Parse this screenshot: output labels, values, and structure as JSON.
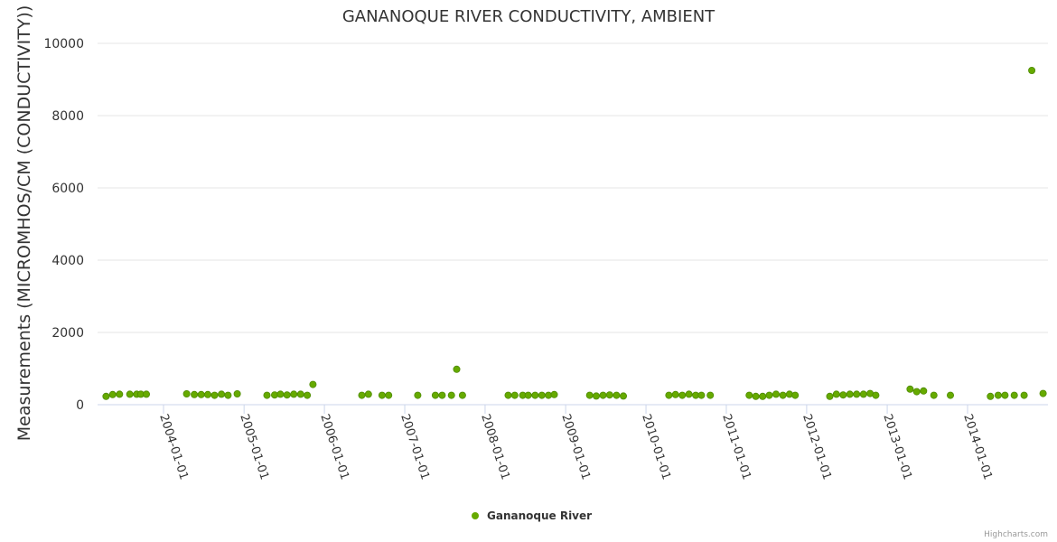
{
  "chart_data": {
    "type": "scatter",
    "title": "GANANOQUE RIVER CONDUCTIVITY, AMBIENT",
    "ylabel": "Measurements (MICROMHOS/CM (CONDUCTIVITY))",
    "xlabel": "",
    "ylim": [
      0,
      10000
    ],
    "y_ticks": [
      "0",
      "2000",
      "4000",
      "6000",
      "8000",
      "10000"
    ],
    "x_ticks": [
      "2004-01-01",
      "2005-01-01",
      "2006-01-01",
      "2007-01-01",
      "2008-01-01",
      "2009-01-01",
      "2010-01-01",
      "2011-01-01",
      "2012-01-01",
      "2013-01-01",
      "2014-01-01"
    ],
    "grid": true,
    "legend": "bottom-center",
    "series": [
      {
        "name": "Gananoque River",
        "color": "#66aa00",
        "points": [
          [
            "2003-04-15",
            230
          ],
          [
            "2003-05-15",
            280
          ],
          [
            "2003-06-15",
            290
          ],
          [
            "2003-08-01",
            290
          ],
          [
            "2003-09-01",
            290
          ],
          [
            "2003-09-20",
            290
          ],
          [
            "2003-10-15",
            290
          ],
          [
            "2004-04-15",
            300
          ],
          [
            "2004-05-20",
            280
          ],
          [
            "2004-06-20",
            280
          ],
          [
            "2004-07-20",
            280
          ],
          [
            "2004-08-20",
            260
          ],
          [
            "2004-09-20",
            290
          ],
          [
            "2004-10-20",
            260
          ],
          [
            "2004-12-01",
            300
          ],
          [
            "2005-04-15",
            260
          ],
          [
            "2005-05-20",
            270
          ],
          [
            "2005-06-15",
            290
          ],
          [
            "2005-07-15",
            270
          ],
          [
            "2005-08-15",
            290
          ],
          [
            "2005-09-15",
            290
          ],
          [
            "2005-10-15",
            260
          ],
          [
            "2005-11-10",
            560
          ],
          [
            "2006-06-20",
            260
          ],
          [
            "2006-07-20",
            290
          ],
          [
            "2006-09-20",
            260
          ],
          [
            "2006-10-20",
            260
          ],
          [
            "2007-03-01",
            260
          ],
          [
            "2007-05-20",
            260
          ],
          [
            "2007-06-20",
            260
          ],
          [
            "2007-08-01",
            260
          ],
          [
            "2007-08-25",
            980
          ],
          [
            "2007-09-20",
            260
          ],
          [
            "2008-04-15",
            260
          ],
          [
            "2008-05-15",
            260
          ],
          [
            "2008-06-20",
            260
          ],
          [
            "2008-07-15",
            260
          ],
          [
            "2008-08-15",
            260
          ],
          [
            "2008-09-15",
            260
          ],
          [
            "2008-10-15",
            260
          ],
          [
            "2008-11-10",
            280
          ],
          [
            "2009-04-20",
            260
          ],
          [
            "2009-05-20",
            240
          ],
          [
            "2009-06-20",
            260
          ],
          [
            "2009-07-20",
            270
          ],
          [
            "2009-08-20",
            260
          ],
          [
            "2009-09-20",
            240
          ],
          [
            "2010-04-15",
            260
          ],
          [
            "2010-05-15",
            280
          ],
          [
            "2010-06-15",
            260
          ],
          [
            "2010-07-15",
            290
          ],
          [
            "2010-08-15",
            260
          ],
          [
            "2010-09-10",
            260
          ],
          [
            "2010-10-20",
            260
          ],
          [
            "2011-04-15",
            260
          ],
          [
            "2011-05-15",
            230
          ],
          [
            "2011-06-15",
            230
          ],
          [
            "2011-07-15",
            260
          ],
          [
            "2011-08-15",
            290
          ],
          [
            "2011-09-15",
            260
          ],
          [
            "2011-10-15",
            290
          ],
          [
            "2011-11-10",
            260
          ],
          [
            "2012-04-15",
            230
          ],
          [
            "2012-05-15",
            290
          ],
          [
            "2012-06-15",
            270
          ],
          [
            "2012-07-15",
            290
          ],
          [
            "2012-08-15",
            290
          ],
          [
            "2012-09-15",
            290
          ],
          [
            "2012-10-15",
            310
          ],
          [
            "2012-11-10",
            260
          ],
          [
            "2013-04-15",
            430
          ],
          [
            "2013-05-15",
            360
          ],
          [
            "2013-06-15",
            380
          ],
          [
            "2013-08-01",
            260
          ],
          [
            "2013-10-15",
            260
          ],
          [
            "2014-04-15",
            230
          ],
          [
            "2014-05-20",
            260
          ],
          [
            "2014-06-20",
            260
          ],
          [
            "2014-08-01",
            260
          ],
          [
            "2014-09-15",
            260
          ],
          [
            "2014-10-20",
            9250
          ],
          [
            "2014-12-10",
            310
          ]
        ]
      }
    ]
  },
  "credits": "Highcharts.com"
}
